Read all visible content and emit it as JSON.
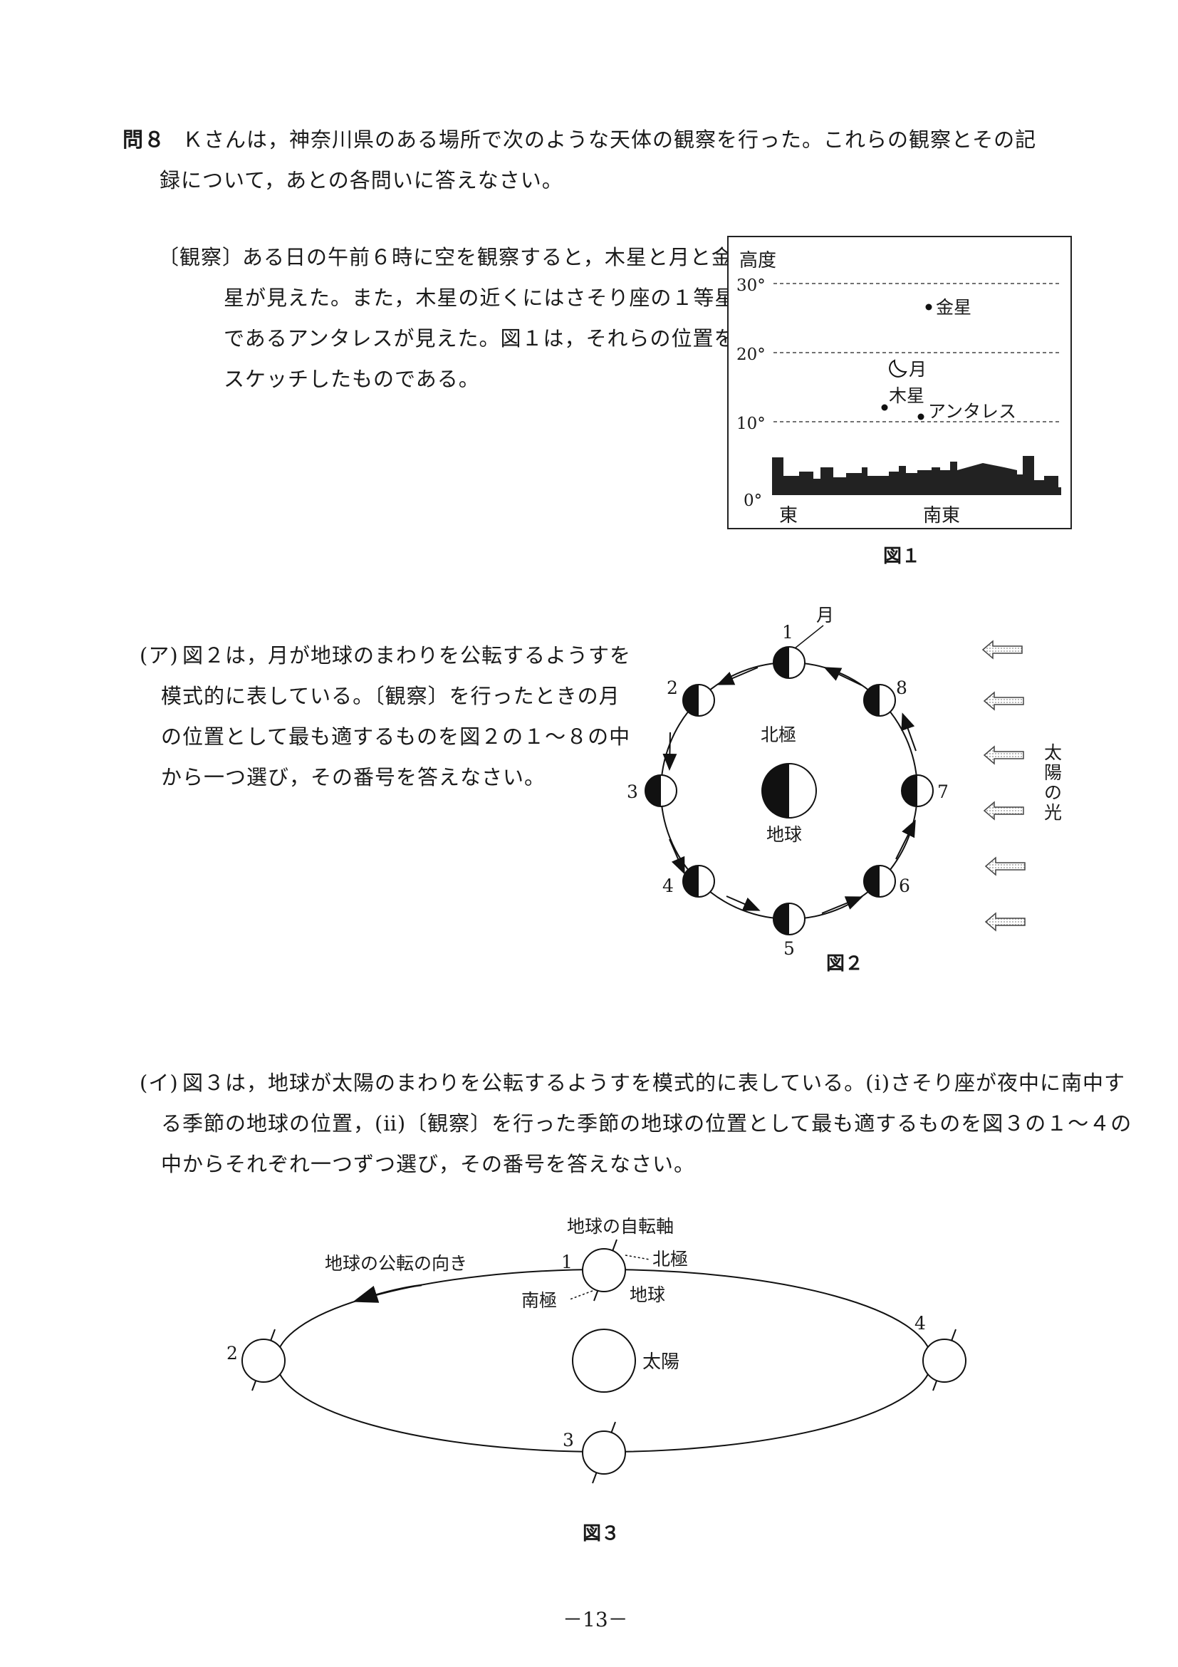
{
  "question": {
    "number": "問８",
    "intro_line1": "Ｋさんは，神奈川県のある場所で次のような天体の観察を行った。これらの観察とその記",
    "intro_line2": "録について，あとの各問いに答えなさい。"
  },
  "observation": {
    "label": "〔観察〕",
    "line1": "ある日の午前６時に空を観察すると，木星と月と金",
    "line2": "星が見えた。また，木星の近くにはさそり座の１等星",
    "line3": "であるアンタレスが見えた。図１は，それらの位置を",
    "line4": "スケッチしたものである。"
  },
  "figure1": {
    "caption": "図１",
    "y_axis_title": "高度",
    "ticks": [
      "30°",
      "20°",
      "10°",
      "0°"
    ],
    "x_labels": [
      "東",
      "南東"
    ],
    "objects": [
      {
        "name": "金星",
        "altitude_deg": 27
      },
      {
        "name": "月",
        "altitude_deg": 19
      },
      {
        "name": "木星",
        "altitude_deg": 13.5
      },
      {
        "name": "アンタレス",
        "altitude_deg": 12
      }
    ]
  },
  "part_a": {
    "label": "(ア)",
    "line1": "図２は，月が地球のまわりを公転するようすを",
    "line2": "模式的に表している。〔観察〕を行ったときの月",
    "line3": "の位置として最も適するものを図２の１～８の中",
    "line4": "から一つ選び，その番号を答えなさい。"
  },
  "figure2": {
    "caption": "図２",
    "moon_label": "月",
    "north_pole_label": "北極",
    "earth_label": "地球",
    "sunlight_chars": [
      "太",
      "陽",
      "の",
      "光"
    ],
    "positions": [
      "1",
      "2",
      "3",
      "4",
      "5",
      "6",
      "7",
      "8"
    ]
  },
  "part_b": {
    "label": "(イ)",
    "line1": "図３は，地球が太陽のまわりを公転するようすを模式的に表している。(ⅰ)さそり座が夜中に南中す",
    "line2": "る季節の地球の位置，(ⅱ)〔観察〕を行った季節の地球の位置として最も適するものを図３の１～４の",
    "line3": "中からそれぞれ一つずつ選び，その番号を答えなさい。"
  },
  "figure3": {
    "caption": "図３",
    "axis_label": "地球の自転軸",
    "north_pole_label": "北極",
    "south_pole_label": "南極",
    "earth_label": "地球",
    "sun_label": "太陽",
    "revolution_label": "地球の公転の向き",
    "positions": [
      "1",
      "2",
      "3",
      "4"
    ]
  },
  "page_number": "－13－"
}
